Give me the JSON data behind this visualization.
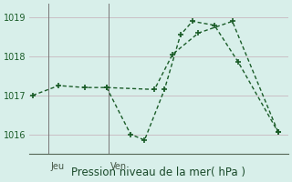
{
  "xlabel": "Pression niveau de la mer( hPa )",
  "bg_color": "#d8efea",
  "grid_color": "#c8dcd8",
  "line_color": "#1a5c28",
  "ylim": [
    1015.5,
    1019.35
  ],
  "yticks": [
    1016,
    1017,
    1018,
    1019
  ],
  "xlim": [
    0,
    13
  ],
  "jeu_x": 1.0,
  "ven_x": 4.0,
  "series1_x": [
    0.2,
    1.5,
    2.8,
    3.9,
    6.3,
    7.2,
    8.5,
    10.2,
    12.5
  ],
  "series1_y": [
    1017.0,
    1017.25,
    1017.2,
    1017.2,
    1017.15,
    1018.05,
    1018.6,
    1018.9,
    1016.05
  ],
  "series2_x": [
    3.9,
    5.1,
    5.8,
    6.8,
    7.6,
    8.2,
    9.3,
    10.5,
    12.5
  ],
  "series2_y": [
    1017.2,
    1016.0,
    1015.85,
    1017.15,
    1018.55,
    1018.9,
    1018.8,
    1017.85,
    1016.05
  ],
  "xlabel_fontsize": 8.5,
  "tick_fontsize": 7,
  "day_label_fontsize": 7
}
